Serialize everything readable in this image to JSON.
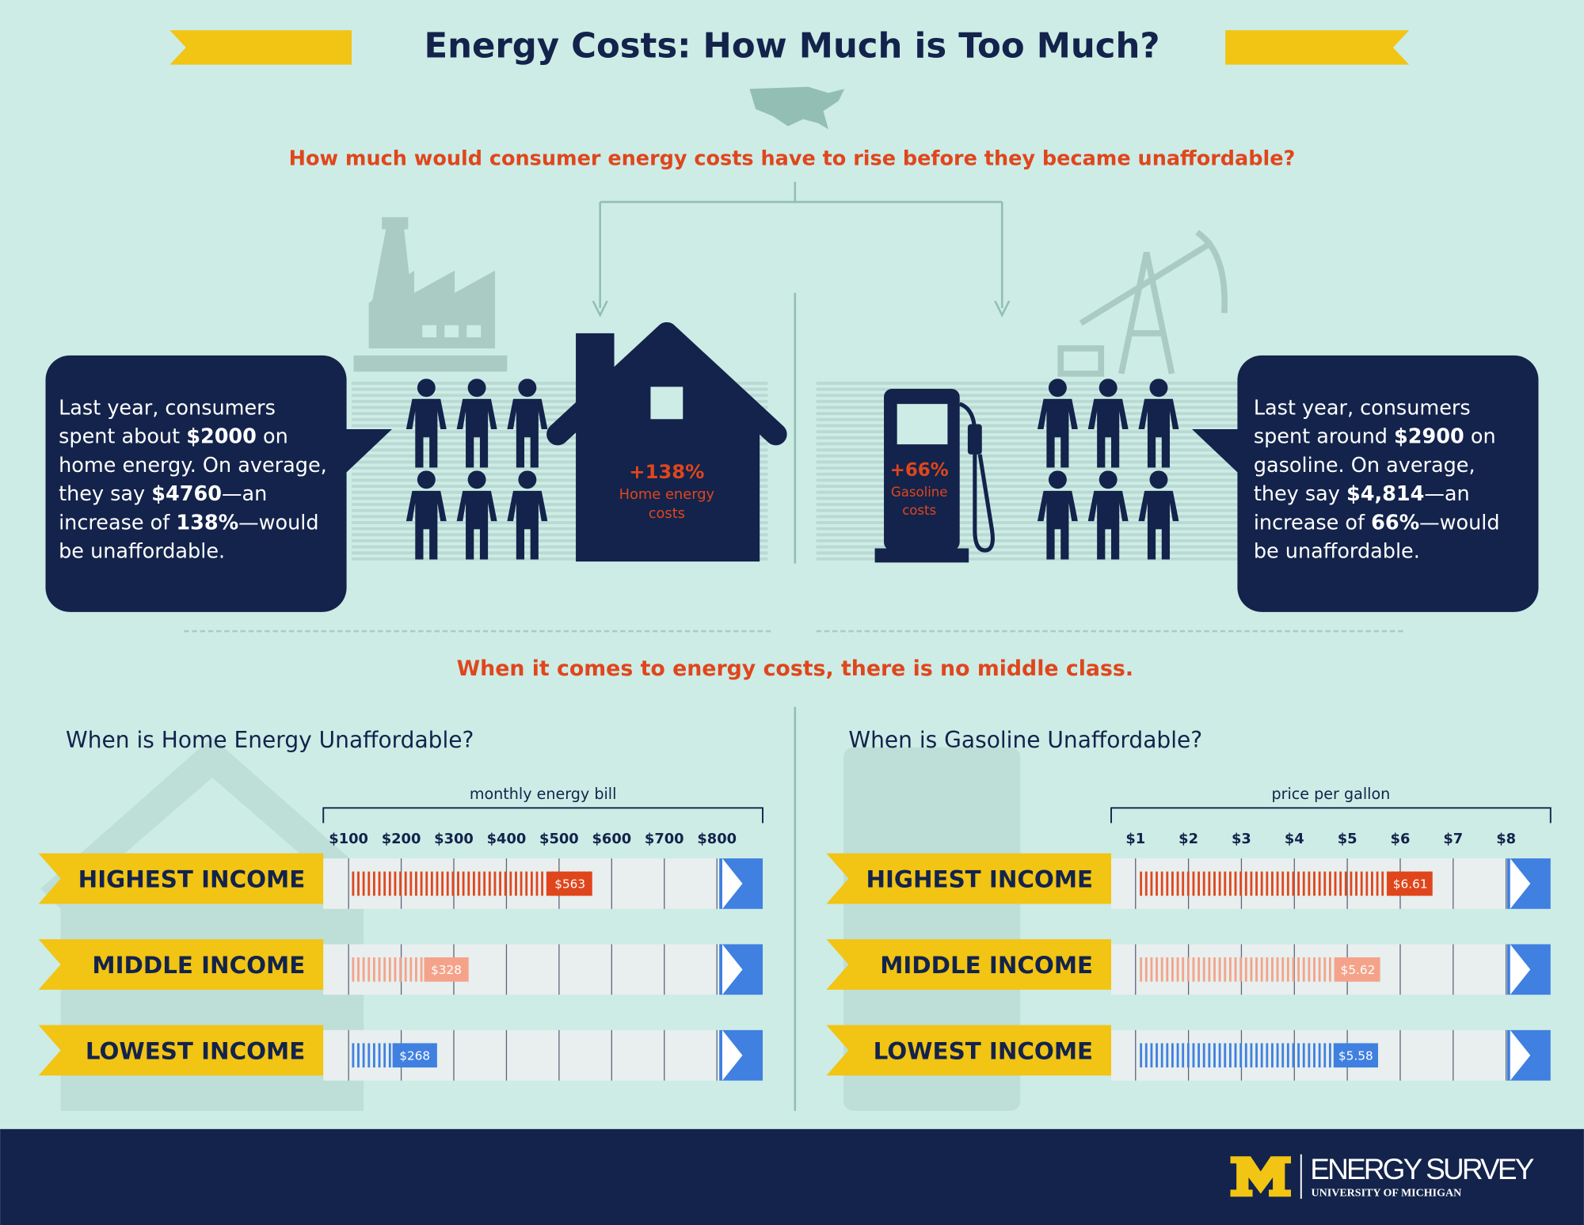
{
  "header": {
    "title": "Energy Costs: How Much is Too Much?",
    "question": "How much would consumer energy costs have to rise before they became unaffordable?"
  },
  "home": {
    "callout": [
      [
        "Last year, consumers"
      ],
      [
        "spent about ",
        "$2000",
        " on"
      ],
      [
        "home energy. On average,"
      ],
      [
        "they say ",
        "$4760",
        "—an"
      ],
      [
        "increase of ",
        "138%",
        "—would"
      ],
      [
        "be unaffordable."
      ]
    ],
    "increase": "+138%",
    "caption": [
      "Home energy",
      "costs"
    ]
  },
  "gasoline": {
    "callout": [
      [
        "Last year, consumers"
      ],
      [
        "spent around ",
        "$2900",
        " on"
      ],
      [
        "gasoline. On average,"
      ],
      [
        "they say ",
        "$4,814",
        "—an"
      ],
      [
        "increase of ",
        "66%",
        "—would"
      ],
      [
        "be unaffordable."
      ]
    ],
    "increase": "+66%",
    "caption": [
      "Gasoline",
      "costs"
    ]
  },
  "section_heading": "When it comes to energy costs, there is no middle class.",
  "chart_data": [
    {
      "type": "bar",
      "title": "When is Home Energy Unaffordable?",
      "xlabel": "monthly energy bill",
      "categories": [
        "HIGHEST INCOME",
        "MIDDLE INCOME",
        "LOWEST INCOME"
      ],
      "values": [
        563,
        328,
        268
      ],
      "value_labels": [
        "$563",
        "$328",
        "$268"
      ],
      "colors": [
        "#e0461c",
        "#f4a38a",
        "#3f80e0"
      ],
      "xlim": [
        52,
        887
      ],
      "xticks": [
        {
          "value": 100,
          "label": "$100"
        },
        {
          "value": 200,
          "label": "$200"
        },
        {
          "value": 300,
          "label": "$300"
        },
        {
          "value": 400,
          "label": "$400"
        },
        {
          "value": 500,
          "label": "$500"
        },
        {
          "value": 600,
          "label": "$600"
        },
        {
          "value": 700,
          "label": "$700"
        },
        {
          "value": 800,
          "label": "$800"
        }
      ],
      "grid": true
    },
    {
      "type": "bar",
      "title": "When is Gasoline Unaffordable?",
      "xlabel": "price per gallon",
      "categories": [
        "HIGHEST INCOME",
        "MIDDLE INCOME",
        "LOWEST INCOME"
      ],
      "values": [
        6.61,
        5.62,
        5.58
      ],
      "value_labels": [
        "$6.61",
        "$5.62",
        "$5.58"
      ],
      "colors": [
        "#e0461c",
        "#f4a38a",
        "#3f80e0"
      ],
      "xlim": [
        0.54,
        8.84
      ],
      "xticks": [
        {
          "value": 1,
          "label": "$1"
        },
        {
          "value": 2,
          "label": "$2"
        },
        {
          "value": 3,
          "label": "$3"
        },
        {
          "value": 4,
          "label": "$4"
        },
        {
          "value": 5,
          "label": "$5"
        },
        {
          "value": 6,
          "label": "$6"
        },
        {
          "value": 7,
          "label": "$7"
        },
        {
          "value": 8,
          "label": "$8"
        }
      ],
      "grid": true
    }
  ],
  "footer": {
    "brand": "ENERGY SURVEY",
    "university": "UNIVERSITY OF MICHIGAN"
  }
}
